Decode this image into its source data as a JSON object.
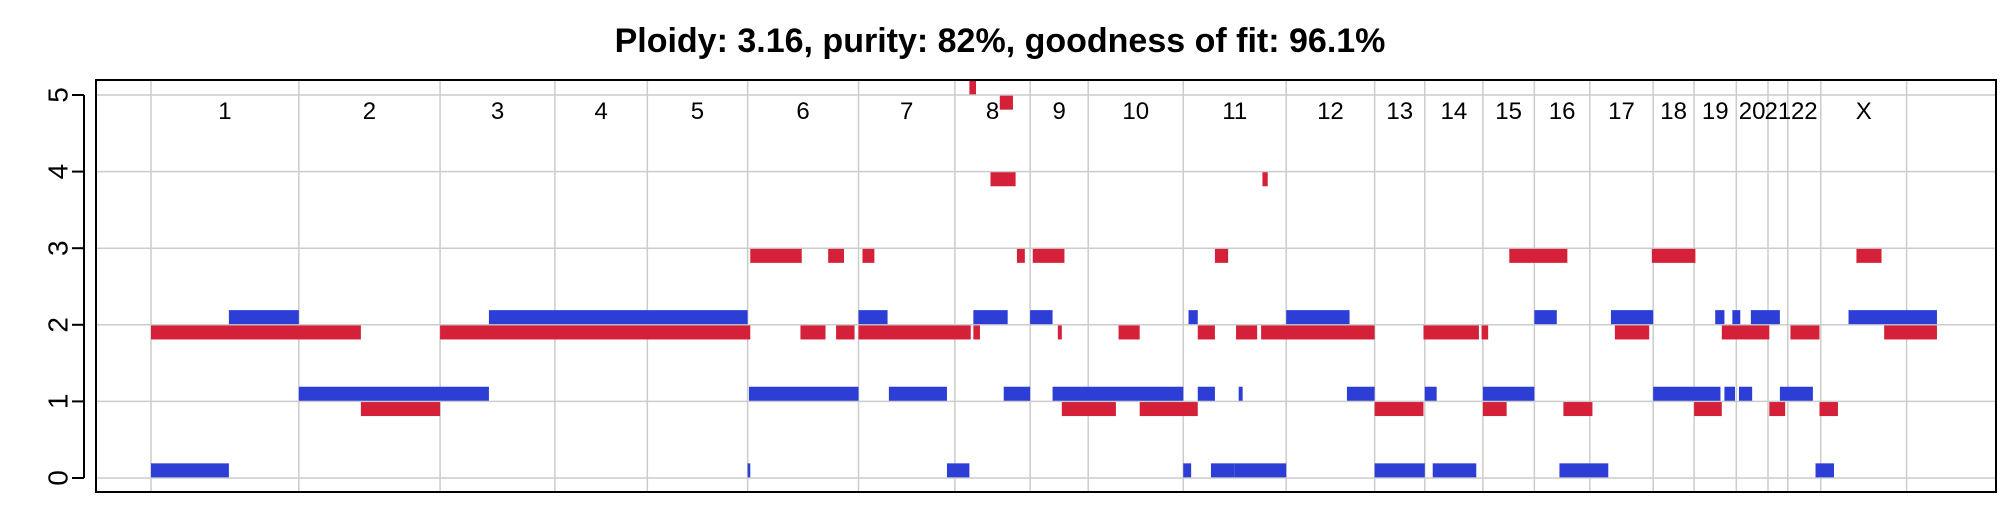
{
  "chart_data": {
    "type": "segments",
    "title": "Ploidy: 3.16, purity: 82%, goodness of fit: 96.1%",
    "xlabel": "",
    "ylabel": "",
    "y_ticks": [
      "0",
      "1",
      "2",
      "3",
      "4",
      "5"
    ],
    "ylim": [
      -0.2,
      5.2
    ],
    "grid": true,
    "legend": "none",
    "colors": {
      "major_allele": "#d42038",
      "minor_allele": "#2c3ed6",
      "grid": "#cccccc",
      "axis": "#000000"
    },
    "chromosomes": [
      {
        "name": "1",
        "start": 0.0,
        "end": 11.2
      },
      {
        "name": "2",
        "start": 11.2,
        "end": 21.9
      },
      {
        "name": "3",
        "start": 21.9,
        "end": 30.6
      },
      {
        "name": "4",
        "start": 30.6,
        "end": 37.6
      },
      {
        "name": "5",
        "start": 37.6,
        "end": 45.2
      },
      {
        "name": "6",
        "start": 45.2,
        "end": 53.6
      },
      {
        "name": "7",
        "start": 53.6,
        "end": 60.9
      },
      {
        "name": "8",
        "start": 60.9,
        "end": 66.6
      },
      {
        "name": "9",
        "start": 66.6,
        "end": 71.0
      },
      {
        "name": "10",
        "start": 71.0,
        "end": 78.2
      },
      {
        "name": "11",
        "start": 78.2,
        "end": 86.0
      },
      {
        "name": "12",
        "start": 86.0,
        "end": 92.7
      },
      {
        "name": "13",
        "start": 92.7,
        "end": 96.5
      },
      {
        "name": "14",
        "start": 96.5,
        "end": 100.9
      },
      {
        "name": "15",
        "start": 100.9,
        "end": 104.8
      },
      {
        "name": "16",
        "start": 104.8,
        "end": 109.0
      },
      {
        "name": "17",
        "start": 109.0,
        "end": 113.8
      },
      {
        "name": "18",
        "start": 113.8,
        "end": 116.9
      },
      {
        "name": "19",
        "start": 116.9,
        "end": 120.1
      },
      {
        "name": "20",
        "start": 120.1,
        "end": 122.5
      },
      {
        "name": "21",
        "start": 122.5,
        "end": 124.0
      },
      {
        "name": "22",
        "start": 124.0,
        "end": 126.5
      },
      {
        "name": "X",
        "start": 126.5,
        "end": 133.0
      }
    ],
    "series": [
      {
        "role": "major_allele",
        "segments": [
          {
            "start": 0.0,
            "end": 15.9,
            "cn": 1.9
          },
          {
            "start": 15.9,
            "end": 21.9,
            "cn": 0.9
          },
          {
            "start": 21.9,
            "end": 45.4,
            "cn": 1.9
          },
          {
            "start": 45.4,
            "end": 49.3,
            "cn": 2.9
          },
          {
            "start": 51.3,
            "end": 52.5,
            "cn": 2.9
          },
          {
            "start": 53.9,
            "end": 54.8,
            "cn": 2.9
          },
          {
            "start": 49.2,
            "end": 51.1,
            "cn": 1.9
          },
          {
            "start": 51.9,
            "end": 53.3,
            "cn": 1.9
          },
          {
            "start": 53.6,
            "end": 62.1,
            "cn": 1.9
          },
          {
            "start": 62.0,
            "end": 62.5,
            "cn": 5.1
          },
          {
            "start": 62.3,
            "end": 62.8,
            "cn": 1.9
          },
          {
            "start": 63.6,
            "end": 65.5,
            "cn": 3.9
          },
          {
            "start": 64.3,
            "end": 65.3,
            "cn": 4.9
          },
          {
            "start": 65.6,
            "end": 66.2,
            "cn": 2.9
          },
          {
            "start": 66.8,
            "end": 69.2,
            "cn": 2.9
          },
          {
            "start": 68.7,
            "end": 69.0,
            "cn": 1.9
          },
          {
            "start": 69.0,
            "end": 73.1,
            "cn": 0.9
          },
          {
            "start": 73.3,
            "end": 74.9,
            "cn": 1.9
          },
          {
            "start": 74.9,
            "end": 79.3,
            "cn": 0.9
          },
          {
            "start": 79.3,
            "end": 80.6,
            "cn": 1.9
          },
          {
            "start": 80.6,
            "end": 81.6,
            "cn": 2.9
          },
          {
            "start": 82.2,
            "end": 83.8,
            "cn": 1.9
          },
          {
            "start": 84.2,
            "end": 84.6,
            "cn": 3.9
          },
          {
            "start": 84.1,
            "end": 92.7,
            "cn": 1.9
          },
          {
            "start": 92.7,
            "end": 96.4,
            "cn": 0.9
          },
          {
            "start": 96.4,
            "end": 100.6,
            "cn": 1.9
          },
          {
            "start": 100.8,
            "end": 101.3,
            "cn": 1.9
          },
          {
            "start": 100.9,
            "end": 102.7,
            "cn": 0.9
          },
          {
            "start": 102.9,
            "end": 107.3,
            "cn": 2.9
          },
          {
            "start": 107.0,
            "end": 109.2,
            "cn": 0.9
          },
          {
            "start": 110.9,
            "end": 113.5,
            "cn": 1.9
          },
          {
            "start": 113.7,
            "end": 117.0,
            "cn": 2.9
          },
          {
            "start": 116.9,
            "end": 119.0,
            "cn": 0.9
          },
          {
            "start": 119.0,
            "end": 122.6,
            "cn": 1.9
          },
          {
            "start": 122.6,
            "end": 123.8,
            "cn": 0.9
          },
          {
            "start": 124.2,
            "end": 126.4,
            "cn": 1.9
          },
          {
            "start": 126.4,
            "end": 127.8,
            "cn": 0.9
          },
          {
            "start": 129.2,
            "end": 131.1,
            "cn": 2.9
          },
          {
            "start": 131.3,
            "end": 135.3,
            "cn": 1.9
          }
        ]
      },
      {
        "role": "minor_allele",
        "segments": [
          {
            "start": 0.0,
            "end": 5.9,
            "cn": 0.1
          },
          {
            "start": 5.9,
            "end": 11.2,
            "cn": 2.1
          },
          {
            "start": 11.2,
            "end": 25.6,
            "cn": 1.1
          },
          {
            "start": 25.6,
            "end": 45.2,
            "cn": 2.1
          },
          {
            "start": 45.2,
            "end": 45.4,
            "cn": 0.1
          },
          {
            "start": 45.3,
            "end": 53.6,
            "cn": 1.1
          },
          {
            "start": 53.6,
            "end": 55.8,
            "cn": 2.1
          },
          {
            "start": 55.9,
            "end": 60.3,
            "cn": 1.1
          },
          {
            "start": 60.3,
            "end": 62.0,
            "cn": 0.1
          },
          {
            "start": 62.3,
            "end": 64.9,
            "cn": 2.1
          },
          {
            "start": 64.6,
            "end": 66.6,
            "cn": 1.1
          },
          {
            "start": 66.6,
            "end": 68.3,
            "cn": 2.1
          },
          {
            "start": 68.3,
            "end": 78.2,
            "cn": 1.1
          },
          {
            "start": 78.2,
            "end": 78.8,
            "cn": 0.1
          },
          {
            "start": 78.6,
            "end": 79.3,
            "cn": 2.1
          },
          {
            "start": 79.3,
            "end": 80.6,
            "cn": 1.1
          },
          {
            "start": 80.3,
            "end": 82.1,
            "cn": 0.1
          },
          {
            "start": 82.4,
            "end": 82.7,
            "cn": 1.1
          },
          {
            "start": 82.1,
            "end": 86.0,
            "cn": 0.1
          },
          {
            "start": 86.0,
            "end": 90.8,
            "cn": 2.1
          },
          {
            "start": 90.6,
            "end": 92.7,
            "cn": 1.1
          },
          {
            "start": 92.7,
            "end": 96.5,
            "cn": 0.1
          },
          {
            "start": 96.5,
            "end": 97.4,
            "cn": 1.1
          },
          {
            "start": 97.1,
            "end": 100.4,
            "cn": 0.1
          },
          {
            "start": 100.9,
            "end": 104.8,
            "cn": 1.1
          },
          {
            "start": 104.8,
            "end": 106.5,
            "cn": 2.1
          },
          {
            "start": 106.7,
            "end": 110.4,
            "cn": 0.1
          },
          {
            "start": 110.6,
            "end": 113.8,
            "cn": 2.1
          },
          {
            "start": 113.8,
            "end": 118.9,
            "cn": 1.1
          },
          {
            "start": 118.5,
            "end": 119.2,
            "cn": 2.1
          },
          {
            "start": 119.2,
            "end": 120.0,
            "cn": 1.1
          },
          {
            "start": 119.8,
            "end": 120.4,
            "cn": 2.1
          },
          {
            "start": 120.3,
            "end": 121.3,
            "cn": 1.1
          },
          {
            "start": 121.2,
            "end": 123.4,
            "cn": 2.1
          },
          {
            "start": 123.4,
            "end": 125.9,
            "cn": 1.1
          },
          {
            "start": 126.1,
            "end": 127.5,
            "cn": 0.1
          },
          {
            "start": 128.6,
            "end": 135.3,
            "cn": 2.1
          }
        ]
      }
    ]
  }
}
